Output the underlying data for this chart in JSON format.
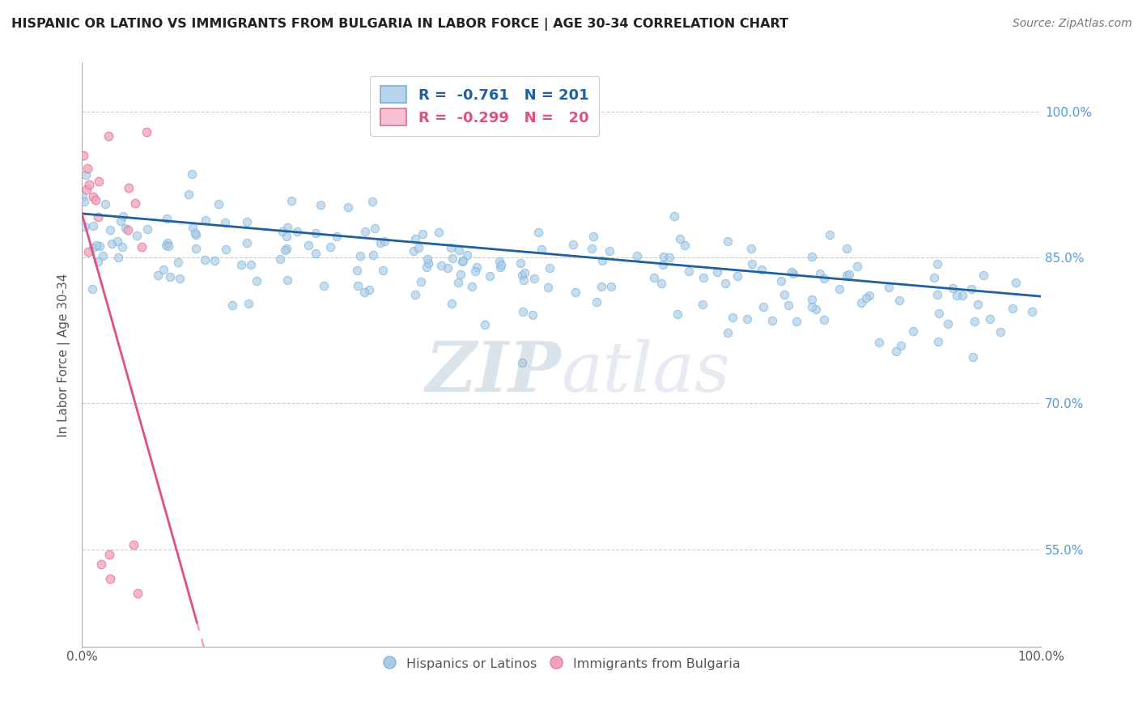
{
  "title": "HISPANIC OR LATINO VS IMMIGRANTS FROM BULGARIA IN LABOR FORCE | AGE 30-34 CORRELATION CHART",
  "source": "Source: ZipAtlas.com",
  "ylabel": "In Labor Force | Age 30-34",
  "watermark_zip": "ZIP",
  "watermark_atlas": "atlas",
  "series": [
    {
      "name": "Hispanics or Latinos",
      "R": -0.761,
      "N": 201,
      "color": "#a8cce8",
      "edge_color": "#7ab0d4",
      "trend_color": "#2060a0",
      "trend_style": "solid"
    },
    {
      "name": "Immigrants from Bulgaria",
      "R": -0.299,
      "N": 20,
      "color": "#f4a0b8",
      "edge_color": "#e07090",
      "trend_color": "#e05080",
      "trend_style": "solid_then_dashed"
    }
  ],
  "xlim": [
    0.0,
    1.0
  ],
  "ylim": [
    0.45,
    1.05
  ],
  "yticks": [
    0.55,
    0.7,
    0.85,
    1.0
  ],
  "ytick_labels": [
    "55.0%",
    "70.0%",
    "85.0%",
    "100.0%"
  ],
  "background_color": "#ffffff",
  "grid_color": "#cccccc",
  "legend_R_color_blue": "#2060a0",
  "legend_R_color_pink": "#e05080"
}
